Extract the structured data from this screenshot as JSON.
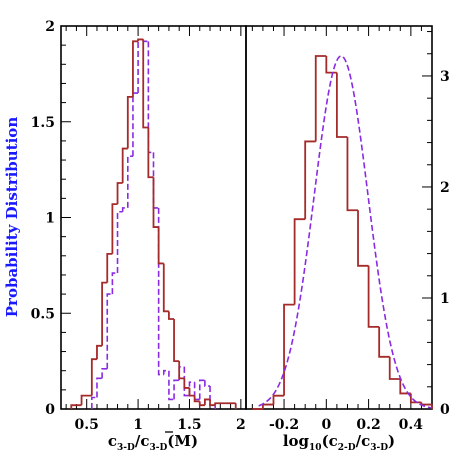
{
  "chart_data": [
    {
      "type": "histogram",
      "ylabel": "Probability Distribution",
      "xlabel": {
        "main": "c",
        "sub1": "3-D",
        "mid": "/",
        "bar": "c",
        "sub2": "3-D",
        "tail": "(M)"
      },
      "xlim": [
        0.25,
        2.05
      ],
      "ylim": [
        0,
        2.0
      ],
      "xticks": {
        "values": [
          0.5,
          1,
          1.5,
          2
        ],
        "labels": [
          "0.5",
          "1",
          "1.5",
          "2"
        ]
      },
      "yticks": {
        "values": [
          0,
          0.5,
          1,
          1.5,
          2
        ],
        "labels": [
          "0",
          "0.5",
          "1",
          "1.5",
          "2"
        ]
      },
      "colors": {
        "solid": "#a52a2a",
        "dashed": "#8a2be2",
        "ylabel": "#1a1aff"
      },
      "series": [
        {
          "style": "solid",
          "edges": [
            0.35,
            0.45,
            0.55,
            0.6,
            0.65,
            0.7,
            0.75,
            0.8,
            0.85,
            0.9,
            0.95,
            1.0,
            1.05,
            1.1,
            1.15,
            1.2,
            1.25,
            1.3,
            1.35,
            1.4,
            1.45,
            1.5,
            1.55,
            1.6,
            1.65,
            1.7,
            1.75,
            1.85,
            1.95
          ],
          "values": [
            0.02,
            0.07,
            0.26,
            0.33,
            0.66,
            0.81,
            1.07,
            1.18,
            1.36,
            1.63,
            1.92,
            1.93,
            1.47,
            1.21,
            0.95,
            0.76,
            0.51,
            0.47,
            0.25,
            0.16,
            0.11,
            0.07,
            0.04,
            0.02,
            0.05,
            0.02,
            0.03,
            0.03
          ]
        },
        {
          "style": "dashed",
          "edges": [
            0.55,
            0.6,
            0.65,
            0.7,
            0.75,
            0.8,
            0.85,
            0.9,
            0.95,
            1.0,
            1.05,
            1.1,
            1.15,
            1.2,
            1.25,
            1.3,
            1.35,
            1.4,
            1.45,
            1.5,
            1.55,
            1.6,
            1.65,
            1.7,
            1.75
          ],
          "values": [
            0.06,
            0.16,
            0.21,
            0.6,
            0.71,
            1.03,
            1.05,
            1.32,
            1.65,
            1.93,
            1.92,
            1.34,
            1.05,
            0.18,
            0.2,
            0.05,
            0.15,
            0.22,
            0.07,
            0.14,
            0.05,
            0.15,
            0.12,
            0.02
          ]
        }
      ]
    },
    {
      "type": "histogram",
      "xlabel": {
        "pre": "log",
        "sub0": "10",
        "open": "(c",
        "sub1": "2-D",
        "mid": "/c",
        "sub2": "3-D",
        "close": ")"
      },
      "xlim": [
        -0.38,
        0.5
      ],
      "ylim": [
        0,
        3.45
      ],
      "xticks": {
        "values": [
          -0.2,
          0,
          0.2,
          0.4
        ],
        "labels": [
          "-0.2",
          "0",
          "0.2",
          "0.4"
        ]
      },
      "yticks": {
        "values": [
          0,
          1,
          2,
          3
        ],
        "labels": [
          "0",
          "1",
          "2",
          "3"
        ]
      },
      "colors": {
        "solid": "#a52a2a",
        "dashed": "#8a2be2"
      },
      "series": [
        {
          "style": "solid",
          "edges": [
            -0.35,
            -0.3,
            -0.25,
            -0.2,
            -0.15,
            -0.1,
            -0.05,
            0.0,
            0.05,
            0.1,
            0.15,
            0.2,
            0.25,
            0.3,
            0.35,
            0.4,
            0.45,
            0.5
          ],
          "values": [
            0.0,
            0.04,
            0.12,
            0.94,
            1.71,
            2.41,
            3.18,
            3.03,
            2.45,
            1.79,
            1.29,
            0.74,
            0.47,
            0.27,
            0.14,
            0.06,
            0.04
          ]
        },
        {
          "style": "dashed-curve",
          "gaussian": {
            "mean": 0.07,
            "sigma": 0.127,
            "peak": 3.18
          },
          "range": [
            -0.32,
            0.5
          ]
        }
      ]
    }
  ]
}
